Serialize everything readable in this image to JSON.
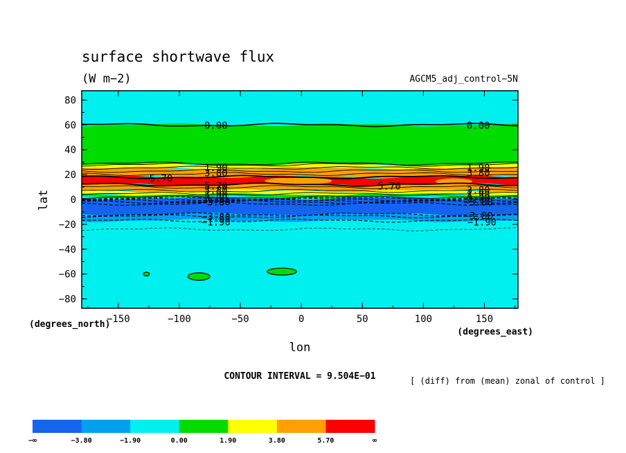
{
  "chart_data": {
    "type": "contour",
    "title": "surface shortwave flux",
    "units": "(W m−2)",
    "run_label": "AGCM5_adj_control−5N",
    "xlabel": "lon",
    "ylabel": "lat",
    "x_units": "(degrees_east)",
    "y_units": "(degrees_north)",
    "xlim": [
      -180,
      177.5
    ],
    "ylim": [
      -87.5,
      87.5
    ],
    "x_ticks": [
      -150,
      -100,
      -50,
      0,
      50,
      100,
      150
    ],
    "x_tick_labels": [
      "−150",
      "−100",
      "−50",
      "0",
      "50",
      "100",
      "150"
    ],
    "y_ticks": [
      80,
      60,
      40,
      20,
      0,
      -20,
      -40,
      -60,
      -80
    ],
    "y_tick_labels": [
      "80",
      "60",
      "40",
      "20",
      "0",
      "−20",
      "−40",
      "−60",
      "−80"
    ],
    "contour_interval_text": "CONTOUR INTERVAL = 9.504E−01",
    "description_text": "[ (diff) from (mean) zonal of control ]",
    "levels": [
      -3.8,
      -1.9,
      0.0,
      1.9,
      3.8,
      5.7
    ],
    "colorbar": {
      "labels": [
        "−∞",
        "−3.80",
        "−1.90",
        "0.00",
        "1.90",
        "3.80",
        "5.70",
        "∞"
      ],
      "colors": [
        "#1464f0",
        "#00a0f0",
        "#00f0f0",
        "#00dc00",
        "#ffff00",
        "#ffa000",
        "#ff0000"
      ]
    },
    "background_color": "#00f0f0",
    "bands": [
      {
        "color": "#00dc00",
        "lat_range": [
          28,
          60
        ]
      },
      {
        "color": "#ffff00",
        "lat_range": [
          25,
          28
        ]
      },
      {
        "color": "#ffa000",
        "lat_range": [
          18,
          25
        ]
      },
      {
        "color": "#ff0000",
        "lat_range": [
          12,
          18
        ]
      },
      {
        "color": "#ffa000",
        "lat_range": [
          7,
          12
        ]
      },
      {
        "color": "#ffff00",
        "lat_range": [
          4,
          7
        ]
      },
      {
        "color": "#00dc00",
        "lat_range": [
          2,
          4
        ]
      },
      {
        "color": "#1464f0",
        "lat_range": [
          -12,
          1
        ]
      },
      {
        "color": "#00a0f0",
        "lat_range": [
          -17,
          -12
        ]
      }
    ],
    "patches": [
      {
        "color": "#ffa000",
        "lat_range": [
          12,
          18
        ],
        "lon_range": [
          -30,
          25
        ]
      },
      {
        "color": "#ffa000",
        "lat_range": [
          12,
          17
        ],
        "lon_range": [
          110,
          140
        ]
      }
    ],
    "islands": [
      {
        "color": "#00dc00",
        "lon": -127,
        "lat": -60,
        "rlon": 2.5,
        "rlat": 1.5
      },
      {
        "color": "#00dc00",
        "lon": -84,
        "lat": -62,
        "rlon": 9,
        "rlat": 3
      },
      {
        "color": "#00dc00",
        "lon": -16,
        "lat": -58,
        "rlon": 12,
        "rlat": 2.8
      }
    ],
    "contour_labels": [
      {
        "text": "0.00",
        "lon": -70,
        "lat": 59.5
      },
      {
        "text": "0.00",
        "lon": 145,
        "lat": 59.5
      },
      {
        "text": "5.70",
        "lon": -115,
        "lat": 17
      },
      {
        "text": "5.70",
        "lon": 72,
        "lat": 11
      },
      {
        "text": "1.90",
        "lon": -70,
        "lat": 25.5
      },
      {
        "text": "3.80",
        "lon": -70,
        "lat": 21.5
      },
      {
        "text": "1.90",
        "lon": 145,
        "lat": 25.5
      },
      {
        "text": "3.80",
        "lon": 145,
        "lat": 21.5
      },
      {
        "text": "5.70",
        "lon": -70,
        "lat": 11
      },
      {
        "text": "3.80",
        "lon": -70,
        "lat": 7.5
      },
      {
        "text": "1.90",
        "lon": -70,
        "lat": 4
      },
      {
        "text": "0.00",
        "lon": -70,
        "lat": 1
      },
      {
        "text": "3.80",
        "lon": 145,
        "lat": 7.5
      },
      {
        "text": "1.90",
        "lon": 145,
        "lat": 4
      },
      {
        "text": "0.00",
        "lon": 145,
        "lat": 1
      },
      {
        "text": "−3.80",
        "lon": -70,
        "lat": -2
      },
      {
        "text": "−3.80",
        "lon": -70,
        "lat": -14
      },
      {
        "text": "−1.90",
        "lon": -70,
        "lat": -18
      },
      {
        "text": "−3.80",
        "lon": 145,
        "lat": -2
      },
      {
        "text": "−3.80",
        "lon": 145,
        "lat": -13
      },
      {
        "text": "−1.90",
        "lon": 148,
        "lat": -18
      }
    ],
    "solid_lines": [
      2,
      4.5,
      7,
      10,
      12,
      18,
      20.5,
      23,
      25.5,
      28,
      29
    ],
    "dashed_lines": [
      1,
      0,
      -1,
      -2,
      -3.5,
      -12,
      -13.5,
      -17
    ]
  }
}
